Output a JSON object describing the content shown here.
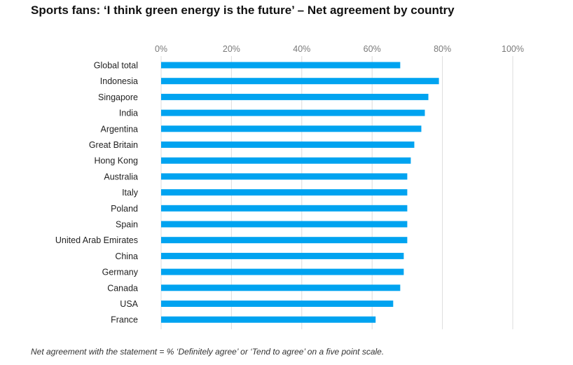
{
  "title": "Sports fans: ‘I think green energy is the future’ – Net agreement by country",
  "footnote": "Net agreement with the statement = % ‘Definitely agree’ or ‘Tend to agree’ on a five point scale.",
  "colors": {
    "bar": "#00a3f0",
    "grid": "#dcdcdc"
  },
  "chart_data": {
    "type": "bar",
    "orientation": "horizontal",
    "title": "Sports fans: ‘I think green energy is the future’ – Net agreement by country",
    "xlabel": "",
    "ylabel": "",
    "xlim": [
      0,
      100
    ],
    "grid": true,
    "ticks": [
      0,
      20,
      40,
      60,
      80,
      100
    ],
    "tick_labels": [
      "0%",
      "20%",
      "40%",
      "60%",
      "80%",
      "100%"
    ],
    "categories": [
      "Global total",
      "Indonesia",
      "Singapore",
      "India",
      "Argentina",
      "Great Britain",
      "Hong Kong",
      "Australia",
      "Italy",
      "Poland",
      "Spain",
      "United Arab Emirates",
      "China",
      "Germany",
      "Canada",
      "USA",
      "France"
    ],
    "values": [
      68,
      79,
      76,
      75,
      74,
      72,
      71,
      70,
      70,
      70,
      70,
      70,
      69,
      69,
      68,
      66,
      61
    ]
  }
}
